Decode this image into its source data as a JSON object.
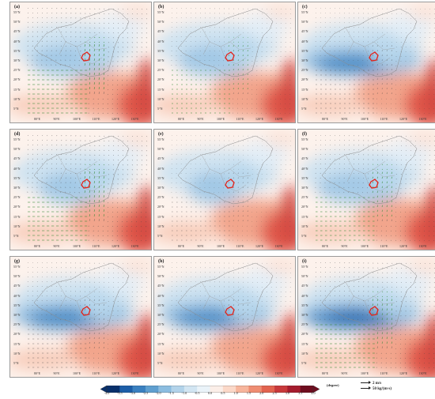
{
  "panels": [
    {
      "label": "(a)",
      "deep": 0.9,
      "vec": 1.0,
      "green": true
    },
    {
      "label": "(b)",
      "deep": 0.8,
      "vec": 0.6,
      "green": true
    },
    {
      "label": "(c)",
      "deep": 1.3,
      "vec": 0.6,
      "green": false
    },
    {
      "label": "(d)",
      "deep": 0.7,
      "vec": 1.0,
      "green": true
    },
    {
      "label": "(e)",
      "deep": 0.6,
      "vec": 0.5,
      "green": false
    },
    {
      "label": "(f)",
      "deep": 0.9,
      "vec": 0.8,
      "green": true
    },
    {
      "label": "(g)",
      "deep": 1.3,
      "vec": 0.7,
      "green": false
    },
    {
      "label": "(h)",
      "deep": 1.2,
      "vec": 0.6,
      "green": false
    },
    {
      "label": "(i)",
      "deep": 1.6,
      "vec": 0.9,
      "green": true
    }
  ],
  "lat_labels": [
    "55°N",
    "50°N",
    "45°N",
    "40°N",
    "35°N",
    "30°N",
    "25°N",
    "20°N",
    "15°N",
    "10°N",
    "5°N"
  ],
  "lon_labels": [
    "80°E",
    "90°E",
    "100°E",
    "110°E",
    "120°E",
    "130°E"
  ],
  "colorbar": {
    "ticks": [
      "-4.0",
      "-3.5",
      "-3.0",
      "-2.5",
      "-2.0",
      "-1.5",
      "-1.0",
      "-0.5",
      "0.0",
      "0.5",
      "1.0",
      "1.5",
      "2.0",
      "2.5",
      "3.0",
      "3.5",
      "4.0"
    ],
    "colors": [
      "#08306b",
      "#1c5ea8",
      "#3a80c0",
      "#5f9fd0",
      "#8bbde0",
      "#b2d3ea",
      "#d2e5f2",
      "#eaf3f9",
      "#fbeee8",
      "#fbd8c8",
      "#f7b59c",
      "#ef8d72",
      "#e2634f",
      "#c8393b",
      "#a51c2e",
      "#6f0d1f"
    ],
    "units": "(degree)"
  },
  "legend": {
    "vector1": "2 m/s",
    "vector2": "50 kg/(m·s)"
  }
}
